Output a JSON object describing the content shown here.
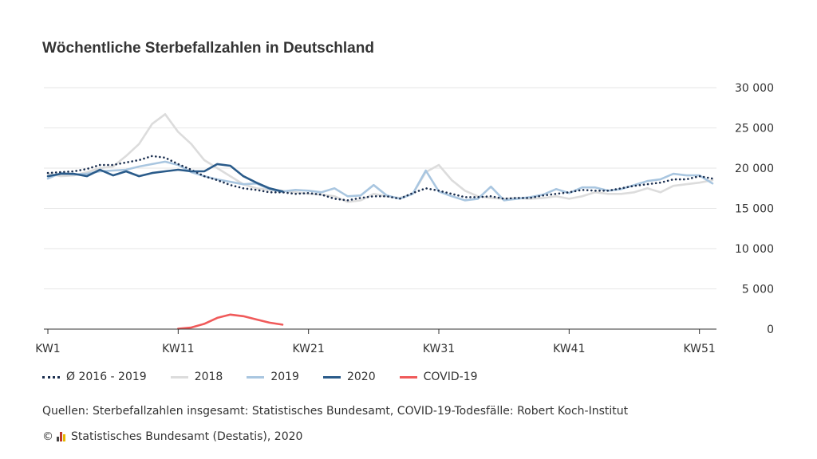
{
  "title": "Wöchentliche Sterbefallzahlen in Deutschland",
  "legend": [
    {
      "label": "Ø 2016 - 2019",
      "color": "#1a2e4f",
      "style": "dotted"
    },
    {
      "label": "2018",
      "color": "#dcdcdc",
      "style": "solid"
    },
    {
      "label": "2019",
      "color": "#a9c6e0",
      "style": "solid"
    },
    {
      "label": "2020",
      "color": "#2a5b8a",
      "style": "solid"
    },
    {
      "label": "COVID-19",
      "color": "#f05a5a",
      "style": "solid"
    }
  ],
  "source": "Quellen: Sterbefallzahlen insgesamt: Statistisches Bundesamt, COVID-19-Todesfälle: Robert Koch-Institut",
  "copyright": {
    "symbol": "©",
    "text": "Statistisches Bundesamt (Destatis), 2020"
  },
  "chart_data": {
    "type": "line",
    "x_ticks": [
      {
        "week": 1,
        "label": "KW1"
      },
      {
        "week": 11,
        "label": "KW11"
      },
      {
        "week": 21,
        "label": "KW21"
      },
      {
        "week": 31,
        "label": "KW31"
      },
      {
        "week": 41,
        "label": "KW41"
      },
      {
        "week": 51,
        "label": "KW51"
      }
    ],
    "y_ticks": [
      {
        "value": 0,
        "label": "0"
      },
      {
        "value": 5000,
        "label": "5 000"
      },
      {
        "value": 10000,
        "label": "10 000"
      },
      {
        "value": 15000,
        "label": "15 000"
      },
      {
        "value": 20000,
        "label": "20 000"
      },
      {
        "value": 25000,
        "label": "25 000"
      },
      {
        "value": 30000,
        "label": "30 000"
      }
    ],
    "xlim": [
      1,
      52
    ],
    "ylim": [
      0,
      30000
    ],
    "grid": true,
    "legend_position": "bottom",
    "series": [
      {
        "name": "2018",
        "color": "#dcdcdc",
        "style": "solid",
        "start_week": 1,
        "values": [
          19300,
          19000,
          19100,
          19500,
          20000,
          20200,
          21500,
          23000,
          25500,
          26700,
          24500,
          23000,
          21000,
          20000,
          19000,
          18000,
          17500,
          17300,
          17200,
          17000,
          16800,
          16700,
          16500,
          15800,
          16000,
          16800,
          16500,
          16300,
          16800,
          19500,
          20400,
          18500,
          17200,
          16500,
          16300,
          16200,
          16300,
          16200,
          16300,
          16500,
          16200,
          16500,
          17000,
          16800,
          16800,
          17000,
          17500,
          17000,
          17800,
          18000,
          18200,
          18500
        ]
      },
      {
        "name": "2019",
        "color": "#a9c6e0",
        "style": "solid",
        "start_week": 1,
        "values": [
          18700,
          19400,
          19200,
          19300,
          19600,
          19700,
          19800,
          20200,
          20500,
          20800,
          20400,
          19500,
          19000,
          18600,
          18300,
          18000,
          18100,
          17400,
          17100,
          17300,
          17200,
          17000,
          17500,
          16500,
          16600,
          17900,
          16600,
          16200,
          16800,
          19700,
          17100,
          16500,
          16000,
          16200,
          17700,
          16000,
          16200,
          16400,
          16700,
          17400,
          16900,
          17600,
          17600,
          17200,
          17400,
          17900,
          18400,
          18600,
          19300,
          19100,
          19100,
          18100
        ]
      },
      {
        "name": "Ø 2016 - 2019",
        "color": "#1a2e4f",
        "style": "dotted",
        "start_week": 1,
        "values": [
          19400,
          19500,
          19600,
          19900,
          20400,
          20400,
          20700,
          21000,
          21500,
          21300,
          20500,
          19800,
          19000,
          18500,
          17900,
          17500,
          17300,
          17000,
          17000,
          16800,
          16900,
          16700,
          16200,
          16000,
          16300,
          16500,
          16500,
          16200,
          16900,
          17500,
          17200,
          16800,
          16400,
          16400,
          16500,
          16200,
          16300,
          16300,
          16600,
          16800,
          17000,
          17300,
          17200,
          17200,
          17500,
          17800,
          18000,
          18200,
          18600,
          18600,
          19000,
          18700
        ]
      },
      {
        "name": "2020",
        "color": "#2a5b8a",
        "style": "solid",
        "start_week": 1,
        "values": [
          19000,
          19300,
          19300,
          19000,
          19800,
          19100,
          19600,
          19000,
          19400,
          19600,
          19800,
          19600,
          19600,
          20500,
          20300,
          19000,
          18200,
          17500,
          17100
        ]
      },
      {
        "name": "COVID-19",
        "color": "#f05a5a",
        "style": "solid",
        "start_week": 11,
        "values": [
          50,
          200,
          650,
          1400,
          1800,
          1600,
          1200,
          800,
          550
        ]
      }
    ]
  }
}
